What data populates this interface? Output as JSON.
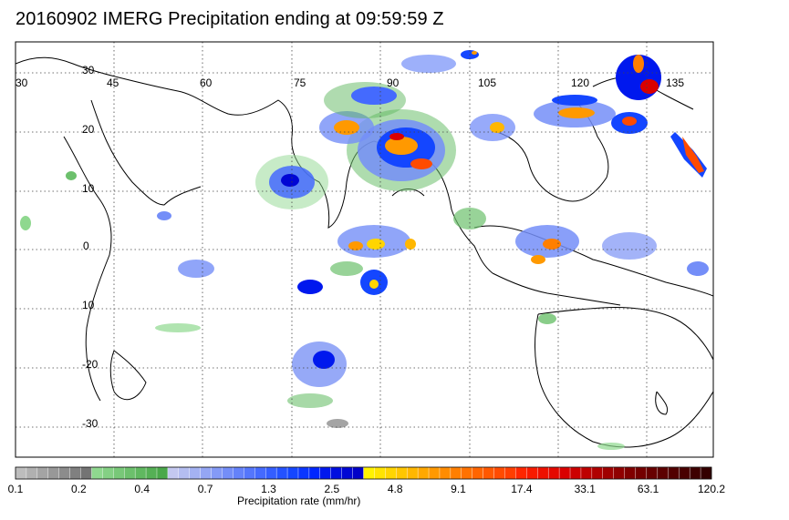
{
  "title": "20160902 IMERG Precipitation ending at 09:59:59 Z",
  "map": {
    "lon_labels": [
      "30",
      "45",
      "60",
      "75",
      "90",
      "105",
      "120",
      "135"
    ],
    "lat_labels": [
      "30",
      "20",
      "10",
      "0",
      "10",
      "-20",
      "-30"
    ],
    "gridline_style": "dotted"
  },
  "colorbar": {
    "title": "Precipitation rate (mm/hr)",
    "tick_labels": [
      "0.1",
      "0.2",
      "0.4",
      "0.7",
      "1.3",
      "2.5",
      "4.8",
      "9.1",
      "17.4",
      "33.1",
      "63.1",
      "120.2"
    ],
    "colors": [
      "#bdbdbd",
      "#b0b0b0",
      "#a4a4a4",
      "#989898",
      "#8c8c8c",
      "#808080",
      "#747474",
      "#8fd88f",
      "#84d084",
      "#78c878",
      "#6cc06c",
      "#60b860",
      "#55b055",
      "#4aa84a",
      "#c4c8f0",
      "#b4bdf0",
      "#a4b2f2",
      "#94a6f4",
      "#849af6",
      "#748ef8",
      "#6482fa",
      "#5476fc",
      "#446afe",
      "#345eff",
      "#2452ff",
      "#1446ff",
      "#0a36ff",
      "#0026ff",
      "#0018ee",
      "#000ee0",
      "#0006d4",
      "#0000c8",
      "#fff200",
      "#ffe400",
      "#ffd500",
      "#ffc600",
      "#ffb700",
      "#ffa800",
      "#ff9900",
      "#ff8c00",
      "#ff7f00",
      "#ff7200",
      "#ff6500",
      "#ff5800",
      "#ff4b00",
      "#ff3e00",
      "#ff2600",
      "#f81a00",
      "#ee1000",
      "#e40800",
      "#da0000",
      "#cc0000",
      "#be0000",
      "#b00000",
      "#a00000",
      "#900000",
      "#800000",
      "#740000",
      "#680000",
      "#5c0000",
      "#520000",
      "#480000",
      "#3e0000",
      "#340000"
    ]
  }
}
